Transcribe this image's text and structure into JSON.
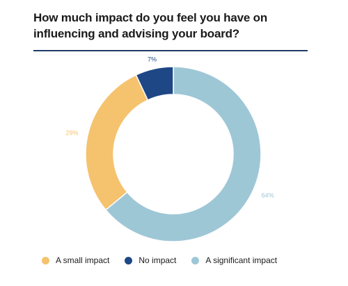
{
  "chart_data": {
    "type": "pie",
    "title": "How much impact do you feel you have on influencing and advising your board?",
    "categories": [
      "A small impact",
      "No impact",
      "A significant impact"
    ],
    "values": [
      29,
      7,
      64
    ],
    "value_labels": [
      "29%",
      "7%",
      "64%"
    ],
    "colors": [
      "#f5c26e",
      "#1e4785",
      "#9ec7d6"
    ],
    "donut": true,
    "start_angle_deg": 0,
    "legend_placement": "bottom"
  }
}
